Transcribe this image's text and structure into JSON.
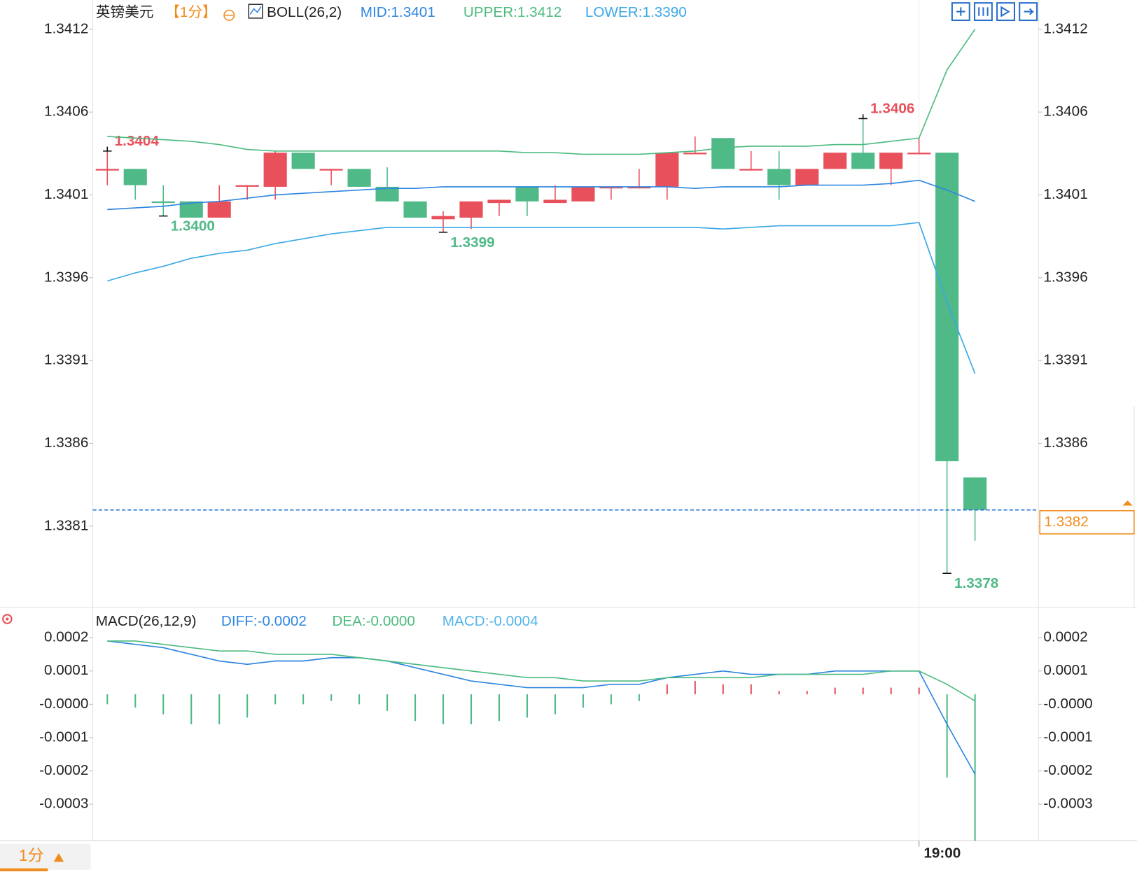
{
  "chart_data": [
    {
      "type": "candlestick",
      "title": "英镑美元",
      "period": "【1分】",
      "indicator": "BOLL(26,2)",
      "up_color": "#e8505b",
      "down_color": "#4fb987",
      "categories": [
        null,
        null,
        null,
        null,
        null,
        null,
        null,
        null,
        null,
        null,
        null,
        null,
        null,
        null,
        null,
        null,
        null,
        null,
        null,
        null,
        null,
        null,
        null,
        null,
        null,
        null,
        null,
        null,
        null,
        "19:00",
        null,
        null
      ],
      "open": [
        1.34028,
        1.34029,
        1.34009,
        1.34009,
        1.33999,
        1.34018,
        1.34018,
        1.34039,
        1.34028,
        1.34029,
        1.34018,
        1.34009,
        1.33998,
        1.33999,
        1.34008,
        1.34018,
        1.34008,
        1.34009,
        1.34017,
        1.34017,
        1.34018,
        1.34038,
        1.34048,
        1.34028,
        1.34029,
        1.34019,
        1.34029,
        1.34039,
        1.34029,
        1.34038,
        1.34039,
        1.33839
      ],
      "high": [
        1.3404,
        1.34029,
        1.34019,
        1.34009,
        1.34019,
        1.34019,
        1.3404,
        1.34039,
        1.34029,
        1.34029,
        1.3403,
        1.34009,
        1.34003,
        1.34009,
        1.3401,
        1.34018,
        1.34019,
        1.34018,
        1.34018,
        1.34029,
        1.34039,
        1.34049,
        1.34048,
        1.3404,
        1.3404,
        1.34029,
        1.34039,
        1.3406,
        1.34039,
        1.34048,
        1.34039,
        1.33839
      ],
      "low": [
        1.34019,
        1.3401,
        1.34,
        1.33999,
        1.33999,
        1.3401,
        1.3401,
        1.34029,
        1.34019,
        1.34018,
        1.34009,
        1.33999,
        1.3399,
        1.33992,
        1.34,
        1.34,
        1.34008,
        1.34009,
        1.3401,
        1.34017,
        1.3401,
        1.34038,
        1.34029,
        1.34028,
        1.3401,
        1.34019,
        1.34029,
        1.34029,
        1.34019,
        1.34038,
        1.3378,
        1.338
      ],
      "close": [
        1.34029,
        1.34019,
        1.34008,
        1.33999,
        1.34009,
        1.34019,
        1.34039,
        1.34029,
        1.34029,
        1.34018,
        1.34009,
        1.33999,
        1.34,
        1.34009,
        1.3401,
        1.34009,
        1.3401,
        1.34018,
        1.34018,
        1.34018,
        1.34039,
        1.34039,
        1.34029,
        1.34029,
        1.34019,
        1.34029,
        1.34039,
        1.34029,
        1.34039,
        1.34039,
        1.33849,
        1.33819
      ],
      "high_labels": [
        "1.3404",
        null,
        null,
        null,
        null,
        null,
        null,
        null,
        null,
        null,
        null,
        null,
        null,
        null,
        null,
        null,
        null,
        null,
        null,
        null,
        null,
        null,
        null,
        null,
        null,
        null,
        null,
        "1.3406",
        null,
        null,
        null,
        null
      ],
      "low_labels": [
        null,
        null,
        "1.3400",
        null,
        null,
        null,
        null,
        null,
        null,
        null,
        null,
        null,
        "1.3399",
        null,
        null,
        null,
        null,
        null,
        null,
        null,
        null,
        null,
        null,
        null,
        null,
        null,
        null,
        null,
        null,
        null,
        "1.3378",
        null
      ],
      "series": [
        {
          "name": "MID:1.3401",
          "color": "#2f86e0",
          "values": [
            1.34004,
            1.34005,
            1.34006,
            1.34008,
            1.34009,
            1.34011,
            1.34013,
            1.34014,
            1.34015,
            1.34016,
            1.34017,
            1.34017,
            1.34018,
            1.34018,
            1.34018,
            1.34018,
            1.34018,
            1.34018,
            1.34018,
            1.34018,
            1.34018,
            1.34017,
            1.34018,
            1.34018,
            1.34018,
            1.34019,
            1.34019,
            1.34019,
            1.3402,
            1.34022,
            1.34016,
            1.34009
          ]
        },
        {
          "name": "UPPER:1.3412",
          "color": "#4cbb7f",
          "values": [
            1.34049,
            1.34048,
            1.34047,
            1.34046,
            1.34044,
            1.34041,
            1.3404,
            1.3404,
            1.3404,
            1.3404,
            1.3404,
            1.3404,
            1.3404,
            1.3404,
            1.3404,
            1.34039,
            1.34039,
            1.34038,
            1.34038,
            1.34038,
            1.34039,
            1.3404,
            1.34042,
            1.34043,
            1.34043,
            1.34043,
            1.34044,
            1.34044,
            1.34046,
            1.34048,
            1.3409,
            1.34115
          ]
        },
        {
          "name": "LOWER:1.3390",
          "color": "#3aa8e6",
          "values": [
            1.3396,
            1.33965,
            1.33969,
            1.33974,
            1.33977,
            1.33979,
            1.33983,
            1.33986,
            1.33989,
            1.33991,
            1.33993,
            1.33993,
            1.33993,
            1.33993,
            1.33993,
            1.33993,
            1.33993,
            1.33993,
            1.33993,
            1.33993,
            1.33993,
            1.33993,
            1.33992,
            1.33993,
            1.33994,
            1.33994,
            1.33994,
            1.33994,
            1.33994,
            1.33996,
            1.33947,
            1.33903
          ]
        }
      ],
      "last_price": {
        "value": 1.33819,
        "label": "1.3382"
      },
      "ylim": [
        1.33759,
        1.34133
      ],
      "yticks": [
        {
          "value": 1.34115,
          "label": "1.3412"
        },
        {
          "value": 1.34064,
          "label": "1.3406"
        },
        {
          "value": 1.34013,
          "label": "1.3401"
        },
        {
          "value": 1.33962,
          "label": "1.3396"
        },
        {
          "value": 1.33911,
          "label": "1.3391"
        },
        {
          "value": 1.3386,
          "label": "1.3386"
        },
        {
          "value": 1.33809,
          "label": "1.3381"
        }
      ]
    },
    {
      "type": "macd",
      "title": "MACD(26,12,9)",
      "series": [
        {
          "name": "DIFF:-0.0002",
          "color": "#2f86e0",
          "values": [
            0.00016,
            0.00015,
            0.00014,
            0.00012,
            0.0001,
            9e-05,
            0.0001,
            0.0001,
            0.00011,
            0.00011,
            0.0001,
            8e-05,
            6e-05,
            4e-05,
            3e-05,
            2e-05,
            2e-05,
            2e-05,
            3e-05,
            3e-05,
            5e-05,
            6e-05,
            7e-05,
            6e-05,
            6e-05,
            6e-05,
            7e-05,
            7e-05,
            7e-05,
            7e-05,
            -9e-05,
            -0.00024
          ]
        },
        {
          "name": "DEA:-0.0000",
          "color": "#4cbb7f",
          "values": [
            0.00016,
            0.00016,
            0.00015,
            0.00014,
            0.00013,
            0.00013,
            0.00012,
            0.00012,
            0.00012,
            0.00011,
            0.0001,
            9e-05,
            8e-05,
            7e-05,
            6e-05,
            5e-05,
            5e-05,
            4e-05,
            4e-05,
            4e-05,
            5e-05,
            5e-05,
            5e-05,
            5e-05,
            6e-05,
            6e-05,
            6e-05,
            6e-05,
            7e-05,
            7e-05,
            3e-05,
            -2e-05
          ]
        }
      ],
      "histogram": {
        "name": "MACD:-0.0004",
        "legend_color": "#55b4e8",
        "up_color": "#e8505b",
        "down_color": "#4fb987",
        "values": [
          -3e-05,
          -4e-05,
          -6e-05,
          -9e-05,
          -9e-05,
          -7e-05,
          -3e-05,
          -3e-05,
          -2e-05,
          -3e-05,
          -5e-05,
          -8e-05,
          -9e-05,
          -9e-05,
          -8e-05,
          -7e-05,
          -6e-05,
          -4e-05,
          -3e-05,
          -2e-05,
          3e-05,
          4e-05,
          3e-05,
          3e-05,
          1e-05,
          1e-05,
          2e-05,
          2e-05,
          2e-05,
          2e-05,
          -0.00025,
          -0.00044
        ]
      },
      "ylim": [
        -0.00044,
        0.00025
      ],
      "yticks": [
        {
          "value": 0.00017,
          "label": "0.0002"
        },
        {
          "value": 7e-05,
          "label": "0.0001"
        },
        {
          "value": -3e-05,
          "label": "-0.0000"
        },
        {
          "value": -0.00013,
          "label": "-0.0001"
        },
        {
          "value": -0.00023,
          "label": "-0.0002"
        },
        {
          "value": -0.00033,
          "label": "-0.0003"
        }
      ]
    }
  ],
  "footer": {
    "period": "1分"
  }
}
